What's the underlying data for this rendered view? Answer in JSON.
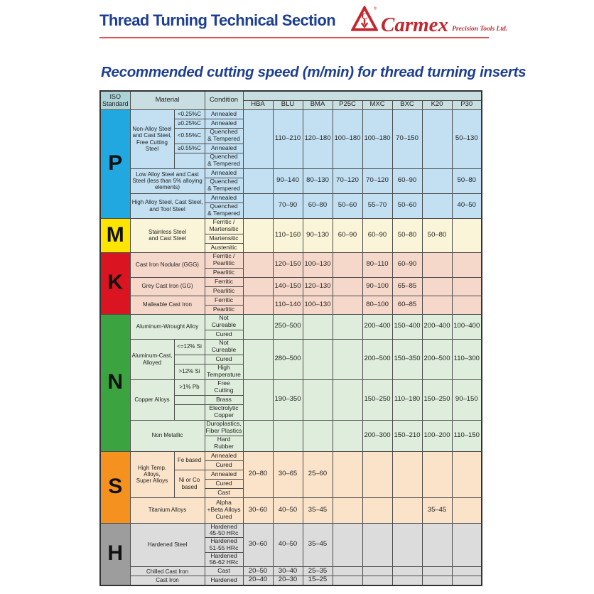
{
  "page": {
    "title": "Thread Turning Technical Section",
    "subtitle": "Recommended cutting speed (m/min) for thread turning inserts",
    "brand": {
      "name": "Carmex",
      "suffix": "Precision Tools Ltd."
    },
    "colors": {
      "navy": "#1d3e92",
      "brand_red": "#c4262e",
      "rule_red": "#e0524e"
    }
  },
  "table": {
    "col_headers": {
      "iso": "ISO\nStandard",
      "material": "Material",
      "condition": "Condition",
      "grades": [
        "HBA",
        "BLU",
        "BMA",
        "P25C",
        "MXC",
        "BXC",
        "K20",
        "P30"
      ]
    },
    "sections": [
      {
        "letter": "P",
        "letter_bg": "#22a8e0",
        "body_bg": "#c2e0f2",
        "groups": [
          {
            "material": "Non-Alloy Steel\nand Cast Steel,\nFree Cutting Steel",
            "has_sub": true,
            "rows": [
              {
                "sub": "<0.25%C",
                "span": 1,
                "cond": "Annealed",
                "h": 13
              },
              {
                "sub": "≥0.25%C",
                "span": 1,
                "cond": "Annealed",
                "h": 13
              },
              {
                "sub": "<0.55%C",
                "span": 1,
                "cond": "Quenched\n& Tempered",
                "h": 22
              },
              {
                "sub": "≥0.55%C",
                "span": 1,
                "cond": "Annealed",
                "h": 13
              },
              {
                "sub": "",
                "span": 1,
                "cond": "Quenched\n& Tempered",
                "h": 22
              }
            ],
            "values": [
              "",
              "110–210",
              "120–180",
              "100–180",
              "100–180",
              "70–150",
              "",
              "50–130"
            ]
          },
          {
            "material": "Low Alloy Steel and Cast\nSteel (less than 5% alloying\nelements)",
            "has_sub": false,
            "rows": [
              {
                "cond": "Annealed",
                "h": 13
              },
              {
                "cond": "Quenched\n& Tempered",
                "h": 22
              }
            ],
            "values": [
              "",
              "90–140",
              "80–130",
              "70–120",
              "70–120",
              "60–90",
              "",
              "50–80"
            ]
          },
          {
            "material": "High Alloy Steel, Cast Steel,\nand Tool Steel",
            "has_sub": false,
            "rows": [
              {
                "cond": "Annealed",
                "h": 13
              },
              {
                "cond": "Quenched\n& Tempered",
                "h": 22
              }
            ],
            "values": [
              "",
              "70–90",
              "60–80",
              "50–60",
              "55–70",
              "50–60",
              "",
              "40–50"
            ]
          }
        ]
      },
      {
        "letter": "M",
        "letter_bg": "#fee500",
        "body_bg": "#faf5d8",
        "groups": [
          {
            "material": "Stainless Steel\nand Cast Steel",
            "has_sub": false,
            "rows": [
              {
                "cond": "Ferritic /\nMartensitic",
                "h": 22
              },
              {
                "cond": "Martensitic",
                "h": 13
              },
              {
                "cond": "Austenitic",
                "h": 13
              }
            ],
            "values": [
              "",
              "110–160",
              "90–130",
              "60–90",
              "60–90",
              "50–80",
              "50–80",
              ""
            ]
          }
        ]
      },
      {
        "letter": "K",
        "letter_bg": "#da1420",
        "body_bg": "#f5d8ca",
        "groups": [
          {
            "material": "Cast Iron Nodular (GGG)",
            "has_sub": false,
            "rows": [
              {
                "cond": "Ferritic /\nPearlitic",
                "h": 22
              },
              {
                "cond": "Pearlitic",
                "h": 13
              }
            ],
            "values": [
              "",
              "120–150",
              "100–130",
              "",
              "80–110",
              "60–90",
              "",
              ""
            ]
          },
          {
            "material": "Grey Cast Iron (GG)",
            "has_sub": false,
            "rows": [
              {
                "cond": "Ferritic",
                "h": 13
              },
              {
                "cond": "Pearlitic",
                "h": 13
              }
            ],
            "values": [
              "",
              "140–150",
              "120–130",
              "",
              "90–100",
              "65–85",
              "",
              ""
            ]
          },
          {
            "material": "Malleable Cast Iron",
            "has_sub": false,
            "rows": [
              {
                "cond": "Ferritic",
                "h": 13
              },
              {
                "cond": "Pearlitic",
                "h": 13
              }
            ],
            "values": [
              "",
              "110–140",
              "100–130",
              "",
              "80–100",
              "60–85",
              "",
              ""
            ]
          }
        ]
      },
      {
        "letter": "N",
        "letter_bg": "#3ba441",
        "body_bg": "#dfeedc",
        "groups": [
          {
            "material": "Aluminum-Wrought Alloy",
            "has_sub": false,
            "rows": [
              {
                "cond": "Not\nCureable",
                "h": 22
              },
              {
                "cond": "Cured",
                "h": 13
              }
            ],
            "values": [
              "",
              "250–500",
              "",
              "",
              "200–400",
              "150–400",
              "200–400",
              "100–400"
            ]
          },
          {
            "material": "Aluminum-Cast,\nAlloyed",
            "has_sub": true,
            "rows": [
              {
                "sub": "<=12% Si",
                "span": 1,
                "cond": "Not\nCureable",
                "h": 22
              },
              {
                "sub": "",
                "span": 1,
                "cond": "Cured",
                "h": 13
              },
              {
                "sub": ">12% Si",
                "span": 1,
                "cond": "High\nTemperature",
                "h": 22
              }
            ],
            "values": [
              "",
              "280–500",
              "",
              "",
              "200–500",
              "150–350",
              "200–500",
              "110–300"
            ]
          },
          {
            "material": "Copper Alloys",
            "has_sub": true,
            "rows": [
              {
                "sub": ">1% Pb",
                "span": 1,
                "cond": "Free\nCutting",
                "h": 22
              },
              {
                "sub": "",
                "span": 1,
                "cond": "Brass",
                "h": 13
              },
              {
                "sub": "",
                "span": 1,
                "cond": "Electrolytic\nCopper",
                "h": 22
              }
            ],
            "values": [
              "",
              "190–350",
              "",
              "",
              "150–250",
              "110–180",
              "150–250",
              "90–150"
            ]
          },
          {
            "material": "Non Metallic",
            "has_sub": false,
            "rows": [
              {
                "cond": "Duroplastics,\nFiber Plastics",
                "h": 22
              },
              {
                "cond": "Hard\nRubber",
                "h": 22
              }
            ],
            "values": [
              "",
              "",
              "",
              "",
              "200–300",
              "150–210",
              "100–200",
              "110–150"
            ]
          }
        ]
      },
      {
        "letter": "S",
        "letter_bg": "#f5921f",
        "body_bg": "#fbe3c9",
        "groups": [
          {
            "material": "High Temp. Alloys,\nSuper Alloys",
            "has_sub": true,
            "rows": [
              {
                "sub": "Fe based",
                "span": 2,
                "cond": "Annealed",
                "h": 13
              },
              {
                "sub": null,
                "cond": "Cured",
                "h": 13
              },
              {
                "sub": "Ni or Co\nbased",
                "span": 3,
                "cond": "Annealed",
                "h": 13
              },
              {
                "sub": null,
                "cond": "Cured",
                "h": 13
              },
              {
                "sub": null,
                "cond": "Cast",
                "h": 13
              }
            ],
            "values": [
              "20–80",
              "30–65",
              "25–60",
              "",
              "",
              "",
              "",
              ""
            ]
          },
          {
            "material": "Titanium Alloys",
            "has_sub": false,
            "rows": [
              {
                "cond": "Alpha\n+Beta Alloys\nCured",
                "h": 36
              }
            ],
            "values": [
              "30–60",
              "40–50",
              "35–45",
              "",
              "",
              "",
              "35–45",
              ""
            ]
          }
        ]
      },
      {
        "letter": "H",
        "letter_bg": "#9d9d9d",
        "body_bg": "#dcdcdc",
        "groups": [
          {
            "material": "Hardened Steel",
            "has_sub": false,
            "rows": [
              {
                "cond": "Hardened\n45-50 HRc",
                "h": 20
              },
              {
                "cond": "Hardened\n51-55 HRc",
                "h": 20
              },
              {
                "cond": "Hardened\n56-62 HRc",
                "h": 20
              }
            ],
            "values": [
              "30–60",
              "40–50",
              "35–45",
              "",
              "",
              "",
              "",
              ""
            ]
          },
          {
            "material": "Chilled Cast Iron",
            "has_sub": false,
            "rows": [
              {
                "cond": "Cast",
                "h": 13
              }
            ],
            "values": [
              "20–50",
              "30–40",
              "25–35",
              "",
              "",
              "",
              "",
              ""
            ]
          },
          {
            "material": "Cast Iron",
            "has_sub": false,
            "rows": [
              {
                "cond": "Hardened",
                "h": 13
              }
            ],
            "values": [
              "20–40",
              "20–30",
              "15–25",
              "",
              "",
              "",
              "",
              ""
            ]
          }
        ]
      }
    ]
  }
}
